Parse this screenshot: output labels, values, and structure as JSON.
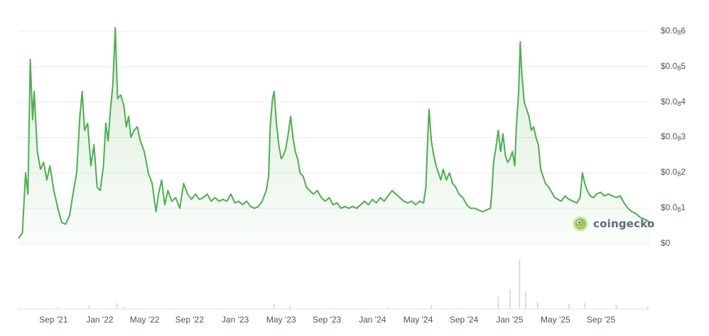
{
  "chart_data": {
    "type": "area",
    "y_ticks": [
      {
        "base": "$0.0",
        "sub": "",
        "num": ""
      },
      {
        "base": "$0.0",
        "sub": "8",
        "num": "1"
      },
      {
        "base": "$0.0",
        "sub": "8",
        "num": "2"
      },
      {
        "base": "$0.0",
        "sub": "8",
        "num": "3"
      },
      {
        "base": "$0.0",
        "sub": "8",
        "num": "4"
      },
      {
        "base": "$0.0",
        "sub": "8",
        "num": "5"
      },
      {
        "base": "$0.0",
        "sub": "8",
        "num": "6"
      }
    ],
    "y_tick_values": [
      0,
      1,
      2,
      3,
      4,
      5,
      6
    ],
    "y_unit_note": "",
    "ylim": [
      0,
      6.2
    ],
    "x_ticks": [
      "Sep '21",
      "Jan '22",
      "May '22",
      "Sep '22",
      "Jan '23",
      "May '23",
      "Sep '23",
      "Jan '24",
      "May '24",
      "Sep '24",
      "Jan '25",
      "May '25",
      "Sep '25"
    ],
    "x_tick_positions": [
      0.0555,
      0.1287,
      0.1998,
      0.2709,
      0.3433,
      0.4159,
      0.4882,
      0.5605,
      0.6328,
      0.7053,
      0.7777,
      0.8502,
      0.9225
    ],
    "points": [
      [
        0.0,
        0.15
      ],
      [
        0.005,
        0.3
      ],
      [
        0.009,
        2.0
      ],
      [
        0.012,
        1.4
      ],
      [
        0.015,
        5.2
      ],
      [
        0.018,
        3.5
      ],
      [
        0.02,
        4.3
      ],
      [
        0.024,
        2.6
      ],
      [
        0.028,
        2.1
      ],
      [
        0.032,
        2.3
      ],
      [
        0.036,
        1.8
      ],
      [
        0.04,
        2.2
      ],
      [
        0.045,
        1.5
      ],
      [
        0.05,
        1.0
      ],
      [
        0.055,
        0.6
      ],
      [
        0.06,
        0.55
      ],
      [
        0.065,
        0.8
      ],
      [
        0.07,
        1.5
      ],
      [
        0.074,
        2.0
      ],
      [
        0.078,
        3.6
      ],
      [
        0.081,
        4.3
      ],
      [
        0.084,
        3.2
      ],
      [
        0.088,
        3.4
      ],
      [
        0.092,
        2.2
      ],
      [
        0.096,
        2.8
      ],
      [
        0.1,
        1.6
      ],
      [
        0.104,
        1.5
      ],
      [
        0.108,
        2.2
      ],
      [
        0.111,
        3.4
      ],
      [
        0.114,
        2.9
      ],
      [
        0.117,
        3.8
      ],
      [
        0.12,
        4.5
      ],
      [
        0.123,
        6.1
      ],
      [
        0.126,
        4.1
      ],
      [
        0.13,
        4.2
      ],
      [
        0.134,
        3.9
      ],
      [
        0.137,
        3.3
      ],
      [
        0.14,
        3.6
      ],
      [
        0.143,
        3.0
      ],
      [
        0.147,
        3.2
      ],
      [
        0.151,
        3.3
      ],
      [
        0.155,
        2.9
      ],
      [
        0.16,
        2.6
      ],
      [
        0.165,
        2.0
      ],
      [
        0.17,
        1.7
      ],
      [
        0.173,
        1.2
      ],
      [
        0.175,
        0.9
      ],
      [
        0.178,
        1.4
      ],
      [
        0.182,
        1.8
      ],
      [
        0.186,
        1.1
      ],
      [
        0.19,
        1.5
      ],
      [
        0.195,
        1.2
      ],
      [
        0.2,
        1.3
      ],
      [
        0.205,
        1.0
      ],
      [
        0.21,
        1.7
      ],
      [
        0.215,
        1.4
      ],
      [
        0.22,
        1.25
      ],
      [
        0.225,
        1.4
      ],
      [
        0.23,
        1.25
      ],
      [
        0.235,
        1.3
      ],
      [
        0.24,
        1.4
      ],
      [
        0.245,
        1.2
      ],
      [
        0.25,
        1.3
      ],
      [
        0.255,
        1.2
      ],
      [
        0.26,
        1.25
      ],
      [
        0.265,
        1.2
      ],
      [
        0.27,
        1.4
      ],
      [
        0.275,
        1.15
      ],
      [
        0.28,
        1.2
      ],
      [
        0.285,
        1.1
      ],
      [
        0.29,
        1.2
      ],
      [
        0.295,
        1.05
      ],
      [
        0.3,
        1.0
      ],
      [
        0.305,
        1.05
      ],
      [
        0.31,
        1.2
      ],
      [
        0.315,
        1.5
      ],
      [
        0.318,
        1.9
      ],
      [
        0.32,
        3.3
      ],
      [
        0.323,
        4.1
      ],
      [
        0.325,
        4.3
      ],
      [
        0.328,
        3.4
      ],
      [
        0.331,
        2.8
      ],
      [
        0.334,
        2.4
      ],
      [
        0.337,
        2.5
      ],
      [
        0.34,
        2.7
      ],
      [
        0.343,
        3.1
      ],
      [
        0.346,
        3.6
      ],
      [
        0.349,
        3.0
      ],
      [
        0.352,
        2.6
      ],
      [
        0.355,
        2.4
      ],
      [
        0.358,
        2.0
      ],
      [
        0.362,
        1.9
      ],
      [
        0.366,
        1.6
      ],
      [
        0.37,
        1.5
      ],
      [
        0.375,
        1.4
      ],
      [
        0.38,
        1.5
      ],
      [
        0.385,
        1.3
      ],
      [
        0.39,
        1.2
      ],
      [
        0.395,
        1.3
      ],
      [
        0.4,
        1.1
      ],
      [
        0.405,
        1.15
      ],
      [
        0.41,
        1.0
      ],
      [
        0.415,
        1.05
      ],
      [
        0.42,
        1.0
      ],
      [
        0.425,
        1.05
      ],
      [
        0.43,
        1.0
      ],
      [
        0.435,
        1.1
      ],
      [
        0.44,
        1.2
      ],
      [
        0.445,
        1.1
      ],
      [
        0.45,
        1.25
      ],
      [
        0.455,
        1.15
      ],
      [
        0.46,
        1.3
      ],
      [
        0.465,
        1.2
      ],
      [
        0.47,
        1.35
      ],
      [
        0.475,
        1.5
      ],
      [
        0.48,
        1.4
      ],
      [
        0.485,
        1.3
      ],
      [
        0.49,
        1.2
      ],
      [
        0.495,
        1.15
      ],
      [
        0.5,
        1.2
      ],
      [
        0.505,
        1.1
      ],
      [
        0.51,
        1.2
      ],
      [
        0.515,
        1.15
      ],
      [
        0.518,
        1.6
      ],
      [
        0.52,
        2.8
      ],
      [
        0.522,
        3.8
      ],
      [
        0.525,
        2.9
      ],
      [
        0.528,
        2.5
      ],
      [
        0.531,
        2.2
      ],
      [
        0.534,
        2.0
      ],
      [
        0.537,
        1.8
      ],
      [
        0.54,
        2.1
      ],
      [
        0.544,
        1.8
      ],
      [
        0.548,
        2.0
      ],
      [
        0.552,
        1.7
      ],
      [
        0.556,
        1.6
      ],
      [
        0.56,
        1.4
      ],
      [
        0.565,
        1.3
      ],
      [
        0.57,
        1.1
      ],
      [
        0.575,
        1.0
      ],
      [
        0.58,
        1.0
      ],
      [
        0.585,
        0.95
      ],
      [
        0.59,
        0.9
      ],
      [
        0.595,
        0.95
      ],
      [
        0.6,
        1.0
      ],
      [
        0.602,
        1.5
      ],
      [
        0.604,
        2.3
      ],
      [
        0.607,
        2.7
      ],
      [
        0.61,
        3.2
      ],
      [
        0.613,
        2.6
      ],
      [
        0.616,
        3.1
      ],
      [
        0.619,
        2.5
      ],
      [
        0.622,
        2.3
      ],
      [
        0.625,
        2.4
      ],
      [
        0.628,
        2.6
      ],
      [
        0.631,
        2.2
      ],
      [
        0.633,
        3.3
      ],
      [
        0.636,
        4.3
      ],
      [
        0.638,
        5.7
      ],
      [
        0.64,
        4.8
      ],
      [
        0.643,
        4.0
      ],
      [
        0.646,
        3.8
      ],
      [
        0.649,
        3.6
      ],
      [
        0.652,
        3.2
      ],
      [
        0.655,
        3.3
      ],
      [
        0.658,
        3.0
      ],
      [
        0.661,
        2.8
      ],
      [
        0.664,
        2.1
      ],
      [
        0.667,
        1.9
      ],
      [
        0.67,
        1.7
      ],
      [
        0.674,
        1.6
      ],
      [
        0.678,
        1.45
      ],
      [
        0.682,
        1.3
      ],
      [
        0.686,
        1.25
      ],
      [
        0.69,
        1.2
      ],
      [
        0.695,
        1.35
      ],
      [
        0.7,
        1.25
      ],
      [
        0.705,
        1.2
      ],
      [
        0.71,
        1.15
      ],
      [
        0.714,
        1.3
      ],
      [
        0.717,
        2.0
      ],
      [
        0.72,
        1.7
      ],
      [
        0.723,
        1.5
      ],
      [
        0.727,
        1.35
      ],
      [
        0.731,
        1.3
      ],
      [
        0.735,
        1.4
      ],
      [
        0.74,
        1.45
      ],
      [
        0.745,
        1.35
      ],
      [
        0.75,
        1.4
      ],
      [
        0.755,
        1.35
      ],
      [
        0.76,
        1.3
      ],
      [
        0.765,
        1.35
      ],
      [
        0.77,
        1.15
      ],
      [
        0.775,
        1.0
      ],
      [
        0.78,
        0.9
      ],
      [
        0.785,
        0.85
      ],
      [
        0.79,
        0.75
      ],
      [
        0.795,
        0.7
      ],
      [
        0.8,
        0.65
      ],
      [
        0.803,
        0.55
      ]
    ],
    "volume": [
      [
        0.0,
        0.02
      ],
      [
        0.05,
        0.03
      ],
      [
        0.09,
        0.08
      ],
      [
        0.1,
        0.02
      ],
      [
        0.125,
        0.12
      ],
      [
        0.135,
        0.04
      ],
      [
        0.18,
        0.03
      ],
      [
        0.25,
        0.02
      ],
      [
        0.325,
        0.1
      ],
      [
        0.345,
        0.06
      ],
      [
        0.4,
        0.02
      ],
      [
        0.47,
        0.03
      ],
      [
        0.525,
        0.09
      ],
      [
        0.56,
        0.02
      ],
      [
        0.61,
        0.25
      ],
      [
        0.625,
        0.4
      ],
      [
        0.637,
        1.0
      ],
      [
        0.645,
        0.35
      ],
      [
        0.66,
        0.15
      ],
      [
        0.7,
        0.1
      ],
      [
        0.72,
        0.12
      ],
      [
        0.76,
        0.08
      ],
      [
        0.8,
        0.05
      ]
    ]
  },
  "watermark": {
    "text": "coingecko"
  },
  "colors": {
    "line": "#4caf50",
    "fill_top": "#4caf50",
    "grid": "#ececec",
    "volume": "#d9dde3"
  }
}
